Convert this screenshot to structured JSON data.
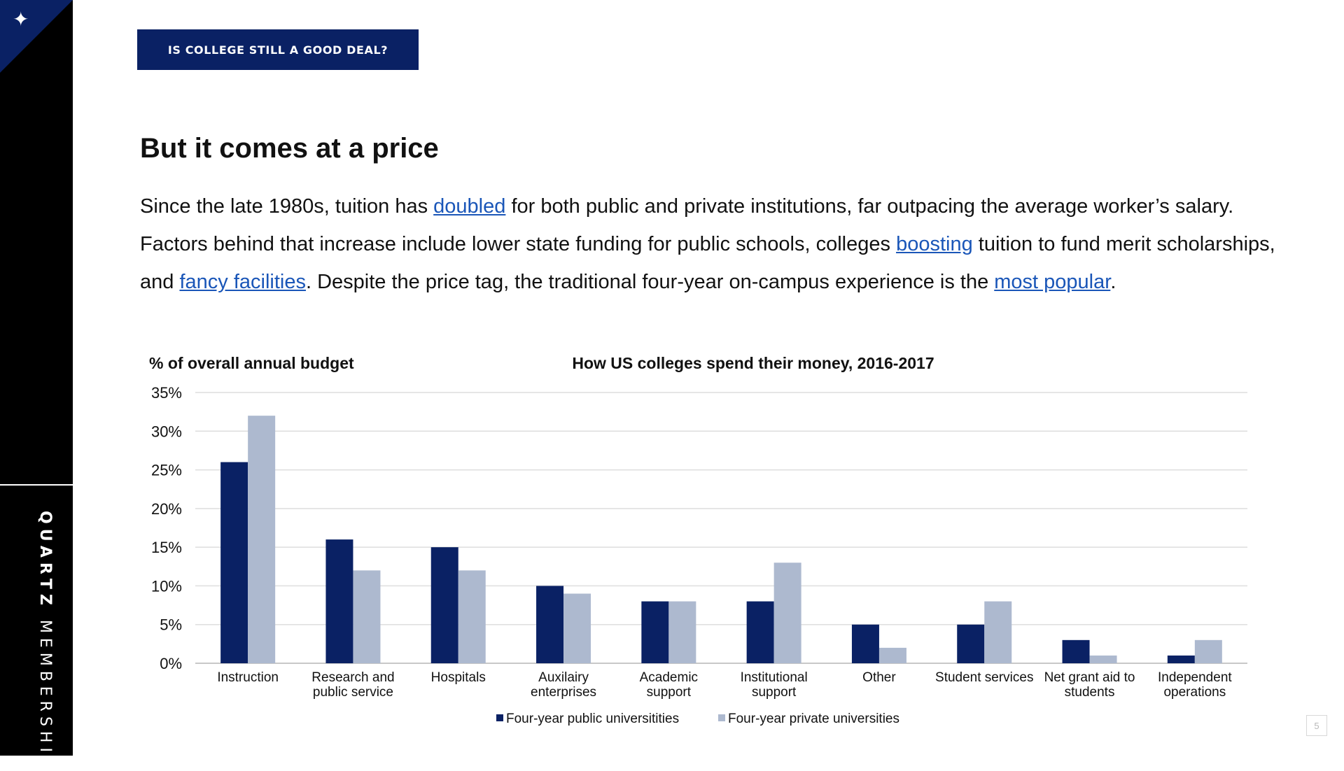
{
  "sidebar": {
    "icon": "star-icon",
    "brand_bold": "QUARTZ",
    "brand_light": "MEMBERSHIP",
    "accent_color": "#0a2164"
  },
  "header": {
    "section_tag": "IS COLLEGE STILL A GOOD DEAL?"
  },
  "title": "But it comes at a price",
  "body": {
    "t1": "Since the late 1980s, tuition has ",
    "link_doubled": "doubled",
    "t2": " for both public and private institutions, far outpacing the average worker’s salary. Factors behind that increase include lower state funding for public schools, colleges ",
    "link_boosting": "boosting",
    "t3": " tuition to fund merit scholarships, and ",
    "link_fancy": "fancy facilities",
    "t4": ". Despite the price tag, the traditional four-year on-campus experience is the ",
    "link_popular": "most popular",
    "t5": "."
  },
  "chart_data": {
    "type": "bar",
    "title": "How US colleges spend their money, 2016-2017",
    "ylabel": "% of overall annual budget",
    "xlabel": "",
    "ylim": [
      0,
      35
    ],
    "yticks": [
      "0%",
      "5%",
      "10%",
      "15%",
      "20%",
      "25%",
      "30%",
      "35%"
    ],
    "grid": true,
    "legend_position": "bottom",
    "categories": [
      [
        "Instruction"
      ],
      [
        "Research and",
        "public service"
      ],
      [
        "Hospitals"
      ],
      [
        "Auxilairy",
        "enterprises"
      ],
      [
        "Academic",
        "support"
      ],
      [
        "Institutional",
        "support"
      ],
      [
        "Other"
      ],
      [
        "Student services"
      ],
      [
        "Net grant aid to",
        "students"
      ],
      [
        "Independent",
        "operations"
      ]
    ],
    "series": [
      {
        "name": "Four-year public universitities",
        "color": "#0a2164",
        "values": [
          26,
          16,
          15,
          10,
          8,
          8,
          5,
          5,
          3,
          1
        ]
      },
      {
        "name": "Four-year private universities",
        "color": "#adb9cf",
        "values": [
          32,
          12,
          12,
          9,
          8,
          13,
          2,
          8,
          1,
          3
        ]
      }
    ]
  },
  "page_number": "5"
}
